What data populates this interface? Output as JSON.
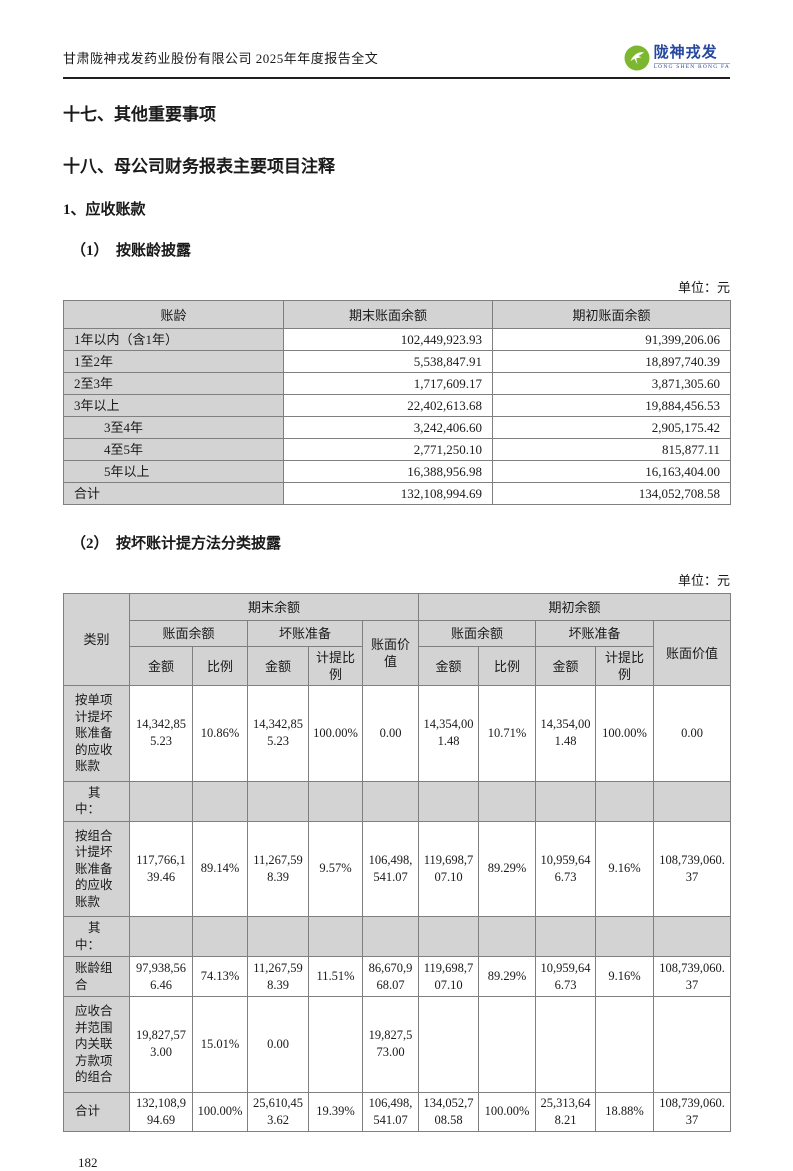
{
  "header": {
    "title": "甘肃陇神戎发药业股份有限公司 2025年年度报告全文",
    "logo": {
      "name": "陇神戎发",
      "subtitle": "LONG SHEN RONG FA",
      "circle_color": "#7db72f",
      "text_color": "#26479e"
    }
  },
  "sections": {
    "s17": "十七、其他重要事项",
    "s18": "十八、母公司财务报表主要项目注释",
    "item1": "1、应收账款",
    "sub1": "（1）　按账龄披露",
    "sub2": "（2）　按坏账计提方法分类披露",
    "unit_label": "单位：元"
  },
  "aging_table": {
    "columns": [
      "账龄",
      "期末账面余额",
      "期初账面余额"
    ],
    "rows": [
      {
        "label": "1年以内（含1年）",
        "end": "102,449,923.93",
        "begin": "91,399,206.06",
        "indent": false
      },
      {
        "label": "1至2年",
        "end": "5,538,847.91",
        "begin": "18,897,740.39",
        "indent": false
      },
      {
        "label": "2至3年",
        "end": "1,717,609.17",
        "begin": "3,871,305.60",
        "indent": false
      },
      {
        "label": "3年以上",
        "end": "22,402,613.68",
        "begin": "19,884,456.53",
        "indent": false
      },
      {
        "label": "3至4年",
        "end": "3,242,406.60",
        "begin": "2,905,175.42",
        "indent": true
      },
      {
        "label": "4至5年",
        "end": "2,771,250.10",
        "begin": "815,877.11",
        "indent": true
      },
      {
        "label": "5年以上",
        "end": "16,388,956.98",
        "begin": "16,163,404.00",
        "indent": true
      },
      {
        "label": "合计",
        "end": "132,108,994.69",
        "begin": "134,052,708.58",
        "indent": false
      }
    ]
  },
  "method_table": {
    "header": {
      "category": "类别",
      "end_group": "期末余额",
      "begin_group": "期初余额",
      "book_balance": "账面余额",
      "bad_debt": "坏账准备",
      "amount": "金额",
      "ratio": "比例",
      "provision_ratio": "计提比例",
      "book_value": "账面价值"
    },
    "rows": [
      {
        "type": "data",
        "tall": true,
        "cells": [
          "按单项计提坏账准备的应收账款",
          "14,342,855.23",
          "10.86%",
          "14,342,855.23",
          "100.00%",
          "0.00",
          "14,354,001.48",
          "10.71%",
          "14,354,001.48",
          "100.00%",
          "0.00"
        ]
      },
      {
        "type": "section",
        "tall": false,
        "cells": [
          "其中：",
          "",
          "",
          "",
          "",
          "",
          "",
          "",
          "",
          "",
          ""
        ]
      },
      {
        "type": "data",
        "tall": true,
        "cells": [
          "按组合计提坏账准备的应收账款",
          "117,766,139.46",
          "89.14%",
          "11,267,598.39",
          "9.57%",
          "106,498,541.07",
          "119,698,707.10",
          "89.29%",
          "10,959,646.73",
          "9.16%",
          "108,739,060.37"
        ]
      },
      {
        "type": "section",
        "tall": false,
        "cells": [
          "其中：",
          "",
          "",
          "",
          "",
          "",
          "",
          "",
          "",
          "",
          ""
        ]
      },
      {
        "type": "data",
        "tall": false,
        "cells": [
          "账龄组合",
          "97,938,566.46",
          "74.13%",
          "11,267,598.39",
          "11.51%",
          "86,670,968.07",
          "119,698,707.10",
          "89.29%",
          "10,959,646.73",
          "9.16%",
          "108,739,060.37"
        ]
      },
      {
        "type": "data",
        "tall": true,
        "cells": [
          "应收合并范围内关联方款项的组合",
          "19,827,573.00",
          "15.01%",
          "0.00",
          "",
          "19,827,573.00",
          "",
          "",
          "",
          "",
          ""
        ]
      },
      {
        "type": "data",
        "tall": false,
        "cells": [
          "合计",
          "132,108,994.69",
          "100.00%",
          "25,610,453.62",
          "19.39%",
          "106,498,541.07",
          "134,052,708.58",
          "100.00%",
          "25,313,648.21",
          "18.88%",
          "108,739,060.37"
        ]
      }
    ]
  },
  "footer": {
    "page_number": "182"
  }
}
